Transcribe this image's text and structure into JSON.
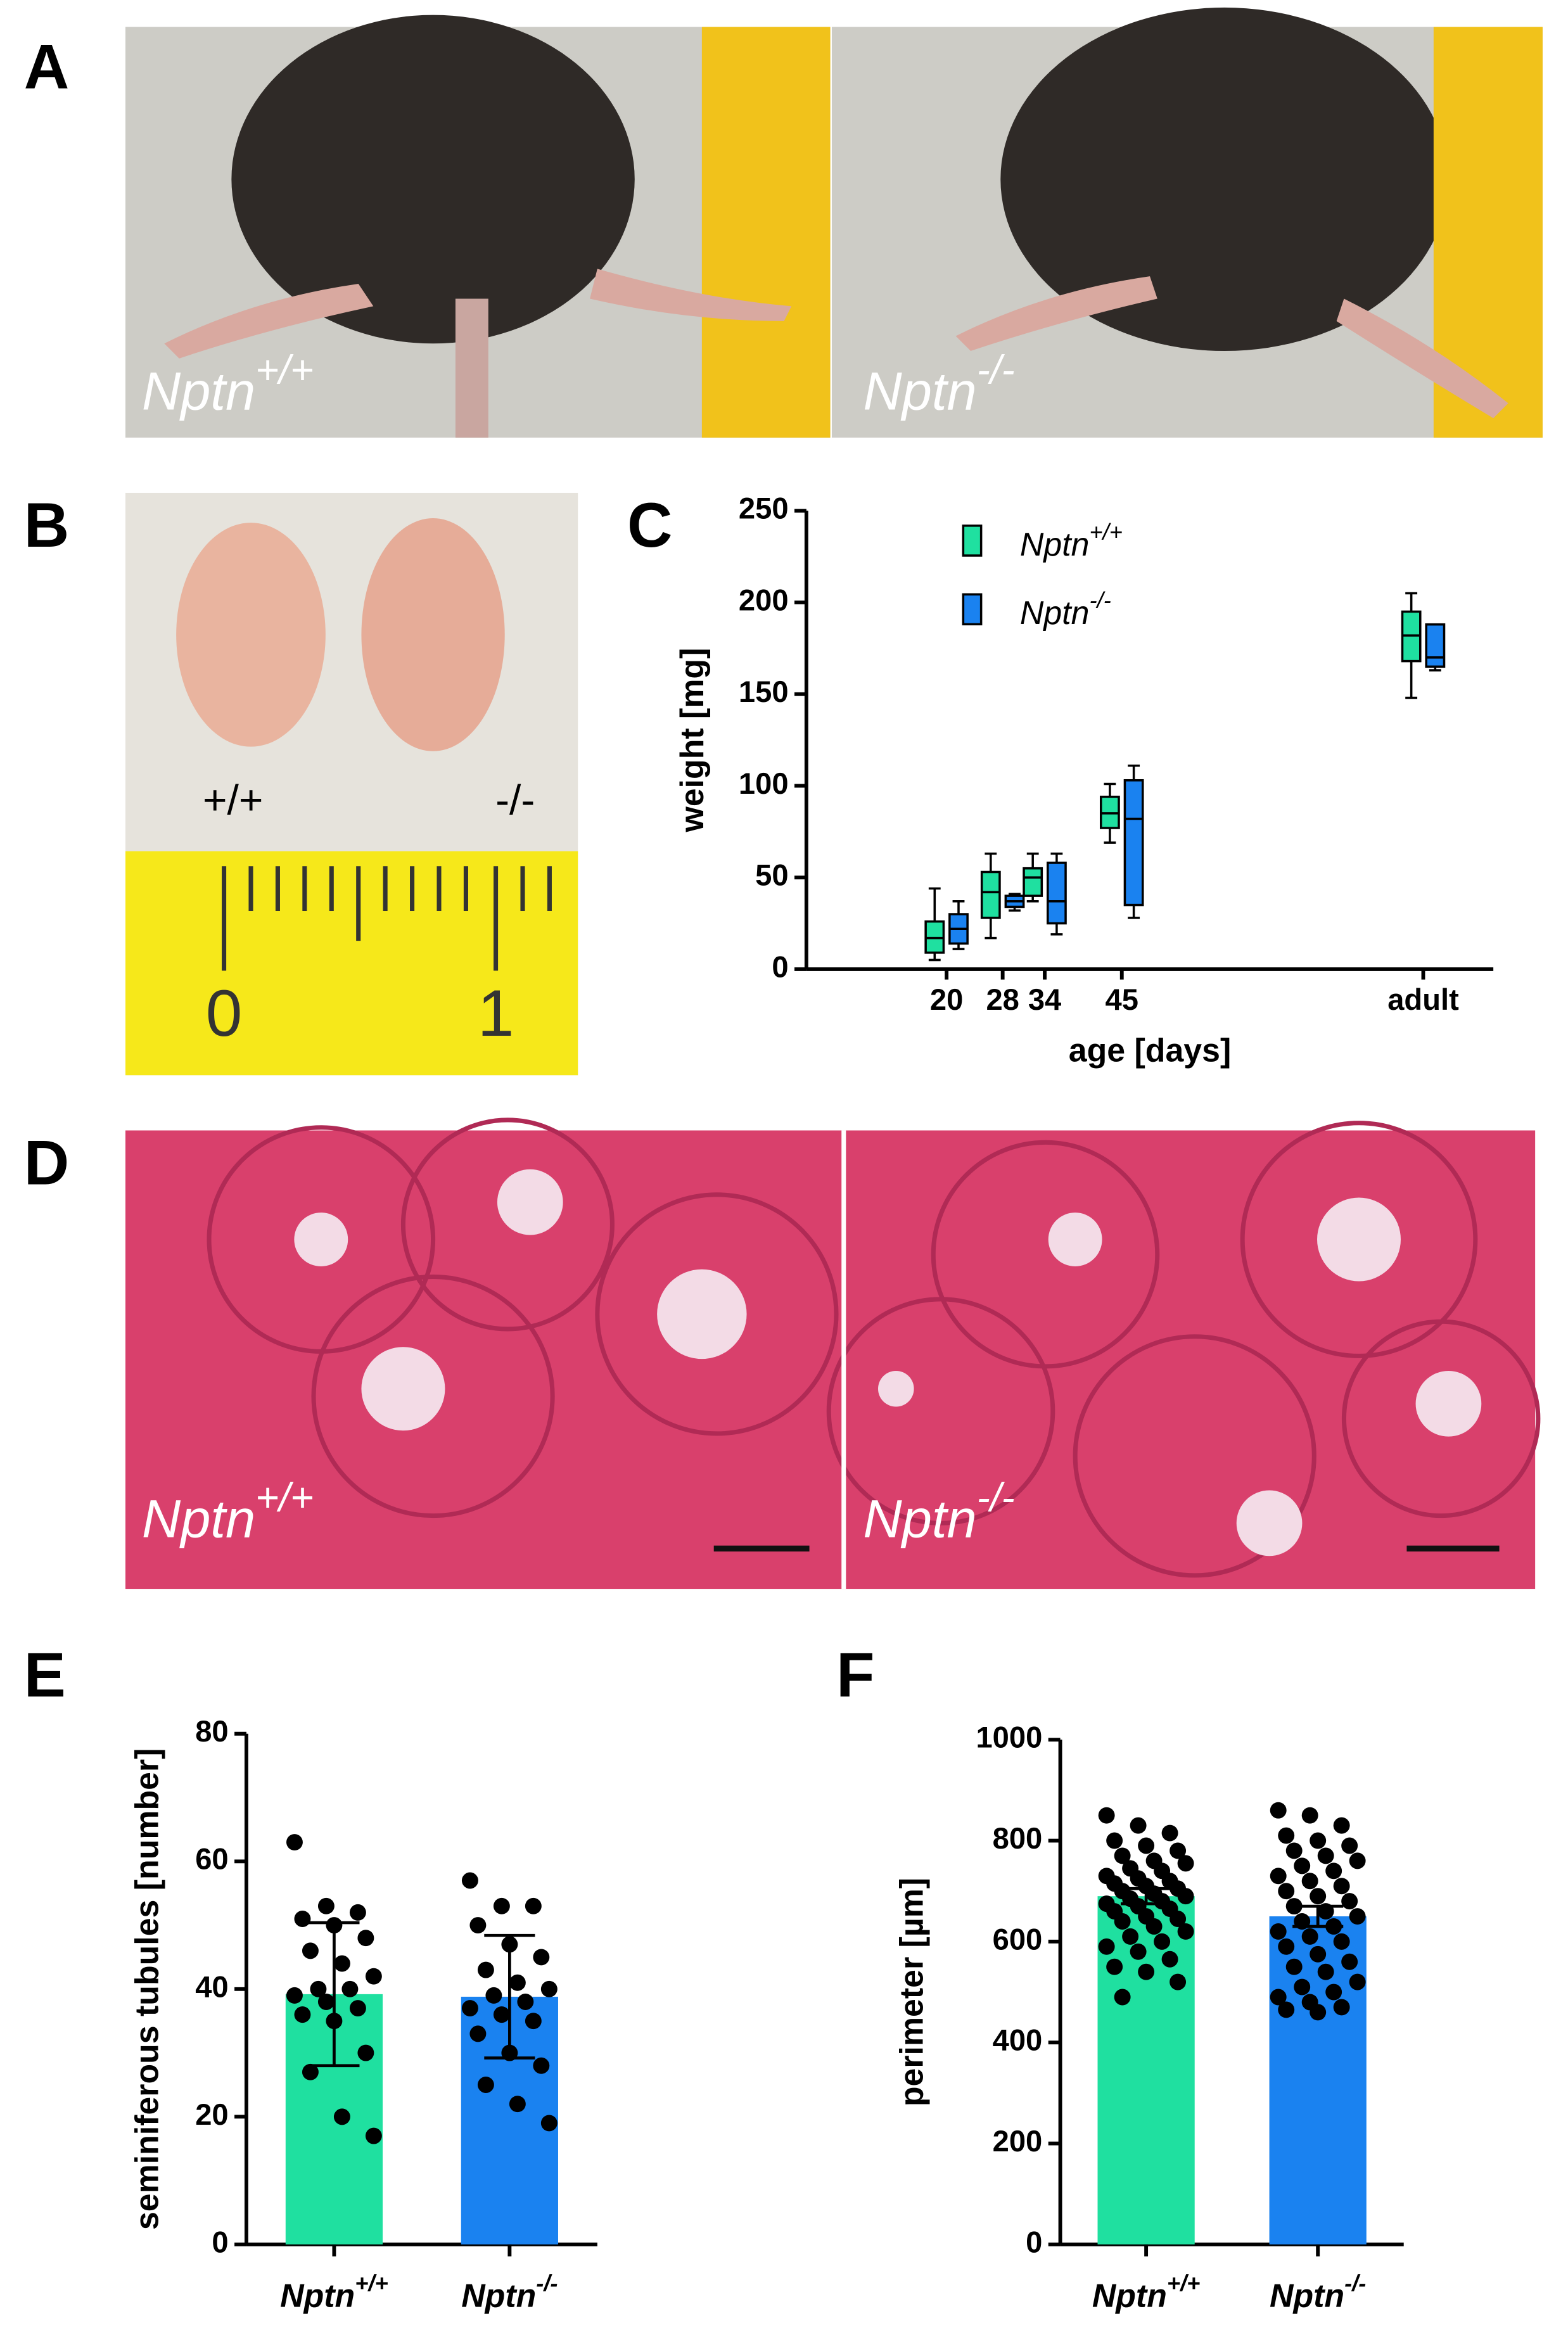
{
  "panels": {
    "a": "A",
    "b": "B",
    "c": "C",
    "d": "D",
    "e": "E",
    "f": "F"
  },
  "photos": {
    "a_left": "Nptn+/+",
    "a_right": "Nptn-/-",
    "b_left": "+/+",
    "b_right": "-/-",
    "b_ruler_0": "0",
    "b_ruler_1": "1",
    "d_left": "Nptn+/+",
    "d_right": "Nptn-/-"
  },
  "chart_data": [
    {
      "type": "box",
      "xlabel": "age [days]",
      "ylabel": "weight [mg]",
      "x": [
        20,
        28,
        34,
        45,
        88
      ],
      "xlim": [
        0,
        98
      ],
      "xticks": [
        20,
        28,
        34,
        45,
        {
          "value": 88,
          "label": "adult"
        }
      ],
      "ylim": [
        0,
        250
      ],
      "yticks": [
        0,
        50,
        100,
        150,
        200,
        250
      ],
      "series": [
        {
          "name": "Nptn+/+",
          "color": "#1fe0a0",
          "min": [
            5,
            17,
            37,
            69,
            148
          ],
          "q1": [
            9,
            28,
            40,
            77,
            168
          ],
          "median": [
            17,
            42,
            50,
            85,
            182
          ],
          "q3": [
            26,
            53,
            55,
            94,
            195
          ],
          "max": [
            44,
            63,
            63,
            101,
            205
          ]
        },
        {
          "name": "Nptn-/-",
          "color": "#1a82f0",
          "min": [
            11,
            32,
            19,
            28,
            163
          ],
          "q1": [
            14,
            34,
            25,
            35,
            165
          ],
          "median": [
            22,
            37,
            37,
            82,
            170
          ],
          "q3": [
            30,
            40,
            58,
            103,
            188
          ],
          "max": [
            37,
            41,
            63,
            111,
            188
          ]
        }
      ]
    },
    {
      "type": "bar",
      "ylabel": "seminiferous tubules [number]",
      "categories": [
        "Nptn+/+",
        "Nptn-/-"
      ],
      "values": [
        39.2,
        38.8
      ],
      "errors": [
        11.2,
        9.6
      ],
      "colors": [
        "#1fe0a0",
        "#1a82f0"
      ],
      "points": [
        [
          63,
          53,
          52,
          51,
          50,
          48,
          46,
          44,
          42,
          40,
          40,
          39,
          38,
          37,
          36,
          35,
          30,
          27,
          20,
          17
        ],
        [
          57,
          53,
          53,
          50,
          47,
          45,
          43,
          41,
          40,
          39,
          38,
          37,
          36,
          35,
          33,
          30,
          28,
          25,
          22,
          19
        ]
      ],
      "ylim": [
        0,
        80
      ],
      "yticks": [
        0,
        20,
        40,
        60,
        80
      ]
    },
    {
      "type": "bar",
      "ylabel": "perimeter [µm]",
      "categories": [
        "Nptn+/+",
        "Nptn-/-"
      ],
      "values": [
        690,
        650
      ],
      "errors": [
        15,
        20
      ],
      "colors": [
        "#1fe0a0",
        "#1a82f0"
      ],
      "points": [
        [
          850,
          830,
          815,
          800,
          790,
          780,
          770,
          760,
          755,
          745,
          740,
          730,
          725,
          720,
          715,
          710,
          705,
          700,
          695,
          690,
          685,
          680,
          675,
          670,
          665,
          660,
          650,
          645,
          640,
          630,
          620,
          610,
          600,
          590,
          580,
          565,
          550,
          540,
          520,
          490
        ],
        [
          860,
          850,
          830,
          810,
          800,
          790,
          780,
          770,
          760,
          750,
          740,
          730,
          720,
          710,
          700,
          690,
          680,
          670,
          660,
          650,
          640,
          630,
          620,
          610,
          600,
          590,
          575,
          560,
          550,
          540,
          520,
          510,
          500,
          490,
          480,
          470,
          465,
          460
        ]
      ],
      "ylim": [
        0,
        1000
      ],
      "yticks": [
        0,
        200,
        400,
        600,
        800,
        1000
      ]
    }
  ]
}
